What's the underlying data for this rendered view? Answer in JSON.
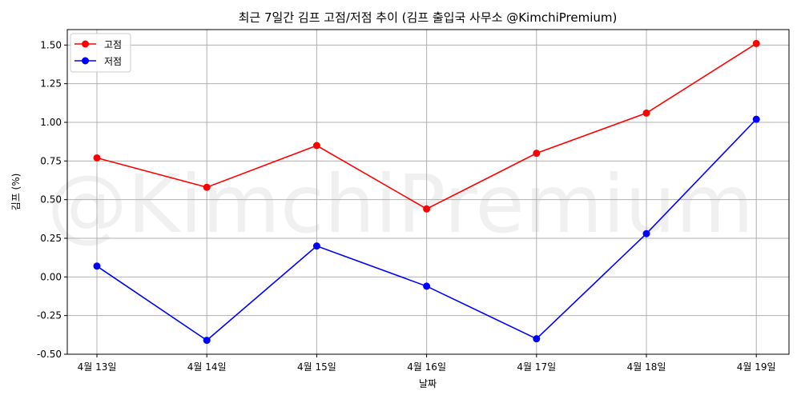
{
  "chart_data": {
    "type": "line",
    "title": "최근 7일간 김프 고점/저점 추이 (김프 출입국 사무소 @KimchiPremium)",
    "xlabel": "날짜",
    "ylabel": "김프 (%)",
    "watermark": "@KimchiPremium",
    "categories": [
      "4월 13일",
      "4월 14일",
      "4월 15일",
      "4월 16일",
      "4월 17일",
      "4월 18일",
      "4월 19일"
    ],
    "ylim": [
      -0.5,
      1.6
    ],
    "yticks": [
      "-0.50",
      "-0.25",
      "0.00",
      "0.25",
      "0.50",
      "0.75",
      "1.00",
      "1.25",
      "1.50"
    ],
    "grid": true,
    "legend_position": "top-left",
    "series": [
      {
        "name": "고점",
        "color": "#ff0000",
        "values": [
          0.77,
          0.58,
          0.85,
          0.44,
          0.8,
          1.06,
          1.51
        ]
      },
      {
        "name": "저점",
        "color": "#0000ff",
        "values": [
          0.07,
          -0.41,
          0.2,
          -0.06,
          -0.4,
          0.28,
          1.02
        ]
      }
    ]
  }
}
